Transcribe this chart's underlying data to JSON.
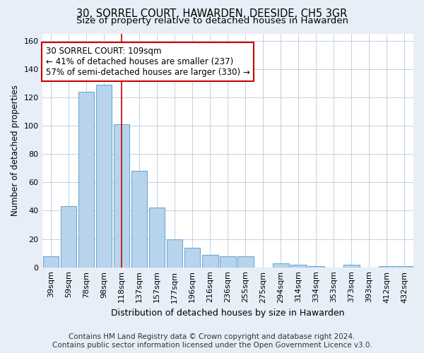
{
  "title": "30, SORREL COURT, HAWARDEN, DEESIDE, CH5 3GR",
  "subtitle": "Size of property relative to detached houses in Hawarden",
  "xlabel": "Distribution of detached houses by size in Hawarden",
  "ylabel": "Number of detached properties",
  "categories": [
    "39sqm",
    "59sqm",
    "78sqm",
    "98sqm",
    "118sqm",
    "137sqm",
    "157sqm",
    "177sqm",
    "196sqm",
    "216sqm",
    "236sqm",
    "255sqm",
    "275sqm",
    "294sqm",
    "314sqm",
    "334sqm",
    "353sqm",
    "373sqm",
    "393sqm",
    "412sqm",
    "432sqm"
  ],
  "values": [
    8,
    43,
    124,
    129,
    101,
    68,
    42,
    20,
    14,
    9,
    8,
    8,
    0,
    3,
    2,
    1,
    0,
    2,
    0,
    1,
    1
  ],
  "bar_color": "#b8d4ec",
  "bar_edge_color": "#6aaad4",
  "vline_x": 4.0,
  "vline_color": "#cc0000",
  "annotation_line1": "30 SORREL COURT: 109sqm",
  "annotation_line2": "← 41% of detached houses are smaller (237)",
  "annotation_line3": "57% of semi-detached houses are larger (330) →",
  "annotation_box_color": "#ffffff",
  "annotation_box_edge": "#cc0000",
  "ylim": [
    0,
    165
  ],
  "yticks": [
    0,
    20,
    40,
    60,
    80,
    100,
    120,
    140,
    160
  ],
  "footer_line1": "Contains HM Land Registry data © Crown copyright and database right 2024.",
  "footer_line2": "Contains public sector information licensed under the Open Government Licence v3.0.",
  "bg_color": "#e8eef7",
  "plot_bg_color": "#ffffff",
  "grid_color": "#c5cfe0",
  "title_fontsize": 10.5,
  "subtitle_fontsize": 9.5,
  "tick_fontsize": 8,
  "ylabel_fontsize": 8.5,
  "xlabel_fontsize": 9,
  "annotation_fontsize": 8.5,
  "footer_fontsize": 7.5
}
